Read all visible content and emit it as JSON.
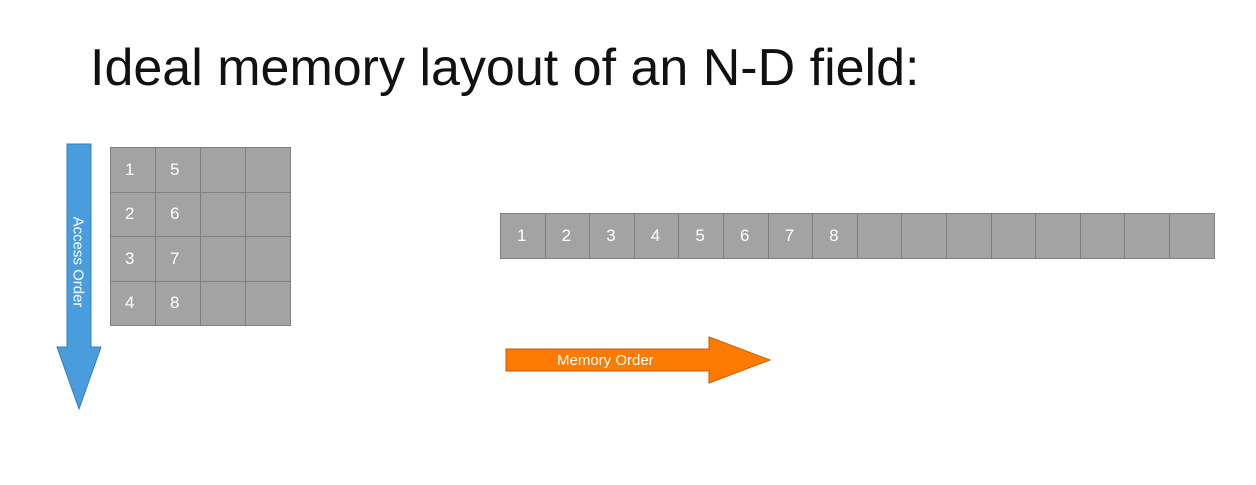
{
  "title": "Ideal memory layout of an N-D field:",
  "grid_2d": {
    "rows": 4,
    "cols": 4,
    "cells": [
      "1",
      "5",
      "",
      "",
      "2",
      "6",
      "",
      "",
      "3",
      "7",
      "",
      "",
      "4",
      "8",
      "",
      ""
    ]
  },
  "memory_1d": {
    "cells": [
      "1",
      "2",
      "3",
      "4",
      "5",
      "6",
      "7",
      "8",
      "",
      "",
      "",
      "",
      "",
      "",
      "",
      ""
    ]
  },
  "access_arrow": {
    "label": "Access Order",
    "color": "#4a9ddc",
    "direction": "down"
  },
  "memory_arrow": {
    "label": "Memory Order",
    "color": "#ff7a00",
    "direction": "right"
  },
  "colors": {
    "cell_fill": "#a3a3a3",
    "cell_border": "#7f7f7f",
    "cell_text": "#ffffff"
  }
}
